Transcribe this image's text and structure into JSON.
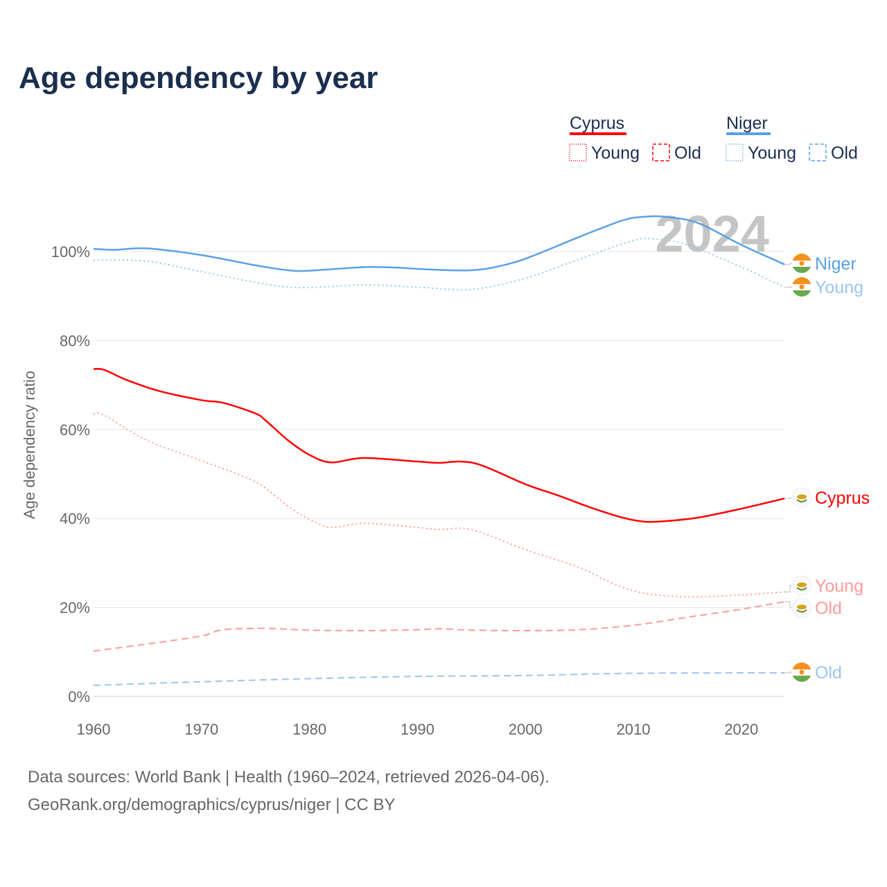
{
  "title": "Age dependency by year",
  "watermark_year": "2024",
  "sources": [
    "Data sources: World Bank | Health (1960–2024, retrieved 2026-04-06).",
    "GeoRank.org/demographics/cyprus/niger | CC BY"
  ],
  "legend": [
    {
      "country": "Cyprus",
      "color": "#ff0000",
      "items": [
        "Young",
        "Old"
      ]
    },
    {
      "country": "Niger",
      "color": "#5aa0e6",
      "items": [
        "Young",
        "Old"
      ]
    }
  ],
  "chart_data": {
    "type": "line",
    "title": "Age dependency by year",
    "xlabel": "",
    "ylabel": "Age dependency ratio",
    "xlim": [
      1960,
      2024
    ],
    "ylim": [
      0,
      110
    ],
    "xticks": [
      "1960",
      "1970",
      "1980",
      "1990",
      "2000",
      "2010",
      "2020"
    ],
    "yticks": [
      "0%",
      "20%",
      "40%",
      "60%",
      "80%",
      "100%"
    ],
    "grid": true,
    "legend_position": "top-right",
    "series": [
      {
        "name": "Niger",
        "label": "Niger",
        "color": "#5aa0e6",
        "dash": "solid",
        "flag": "niger",
        "x": [
          1960,
          1962,
          1965,
          1970,
          1975,
          1978,
          1980,
          1985,
          1988,
          1990,
          1993,
          1995,
          1997,
          2000,
          2005,
          2009,
          2011,
          2013,
          2016,
          2020,
          2024
        ],
        "y": [
          100.6,
          100.4,
          100.7,
          99.2,
          96.9,
          95.8,
          95.7,
          96.5,
          96.4,
          96.1,
          95.8,
          95.8,
          96.4,
          98.4,
          103.3,
          107,
          107.8,
          107.8,
          106.4,
          101.5,
          97.1
        ]
      },
      {
        "name": "Niger Young",
        "label": "Young",
        "color": "#9cc4ee",
        "dash": "dotted",
        "flag": "niger",
        "x": [
          1960,
          1965,
          1970,
          1975,
          1979,
          1985,
          1990,
          1995,
          2000,
          2005,
          2010,
          2012,
          2015,
          2020,
          2024
        ],
        "y": [
          98.1,
          97.8,
          95.5,
          93.1,
          91.9,
          92.5,
          92,
          91.5,
          94,
          98.3,
          102.5,
          102.8,
          101.5,
          96.5,
          92
        ]
      },
      {
        "name": "Niger Old",
        "label": "Old",
        "color": "#9cc4ee",
        "dash": "dashed",
        "flag": "niger",
        "x": [
          1960,
          1970,
          1980,
          1990,
          2000,
          2010,
          2024
        ],
        "y": [
          2.5,
          3.3,
          4,
          4.5,
          4.7,
          5.2,
          5.3
        ]
      },
      {
        "name": "Cyprus",
        "label": "Cyprus",
        "color": "#ff0000",
        "dash": "solid",
        "flag": "cyprus",
        "x": [
          1960,
          1961,
          1963,
          1966,
          1970,
          1972,
          1975,
          1976,
          1978,
          1980,
          1982,
          1985,
          1990,
          1992,
          1994,
          1996,
          2000,
          2003,
          2006,
          2009,
          2011,
          2013,
          2016,
          2020,
          2024
        ],
        "y": [
          73.6,
          73.4,
          71.2,
          68.7,
          66.6,
          66,
          63.6,
          61.9,
          57.6,
          54.3,
          52.6,
          53.6,
          52.8,
          52.5,
          52.8,
          51.9,
          47.7,
          45.2,
          42.5,
          40.2,
          39.3,
          39.4,
          40.2,
          42.2,
          44.5
        ]
      },
      {
        "name": "Cyprus Young",
        "label": "Young",
        "color": "#ff9a9a",
        "dash": "dotted",
        "flag": "cyprus",
        "x": [
          1960,
          1961,
          1965,
          1970,
          1975,
          1978,
          1980,
          1982,
          1985,
          1990,
          1992,
          1995,
          2000,
          2005,
          2008,
          2011,
          2015,
          2020,
          2024
        ],
        "y": [
          63.5,
          63.2,
          57.5,
          53,
          48.2,
          42.8,
          39.8,
          38,
          38.9,
          38,
          37.5,
          37.5,
          33,
          29,
          25.5,
          23.2,
          22.4,
          22.8,
          23.5
        ]
      },
      {
        "name": "Cyprus Old",
        "label": "Old",
        "color": "#ff9a9a",
        "dash": "dashed",
        "flag": "cyprus",
        "x": [
          1960,
          1965,
          1970,
          1972,
          1976,
          1980,
          1985,
          1990,
          1992,
          1995,
          2000,
          2005,
          2010,
          2015,
          2020,
          2024
        ],
        "y": [
          10.2,
          11.8,
          13.6,
          15,
          15.3,
          14.9,
          14.8,
          15,
          15.2,
          14.9,
          14.8,
          15,
          16,
          17.8,
          19.6,
          21.3
        ]
      }
    ]
  }
}
